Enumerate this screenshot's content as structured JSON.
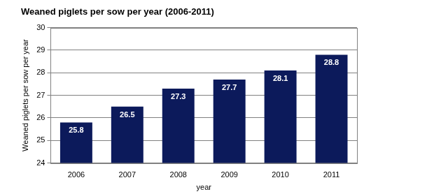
{
  "chart_data": {
    "type": "bar",
    "title": "Weaned piglets per sow per year (2006-2011)",
    "x_label": "year",
    "y_label": "Weaned piglets per sow per year",
    "categories": [
      "2006",
      "2007",
      "2008",
      "2009",
      "2010",
      "2011"
    ],
    "values": [
      25.8,
      26.5,
      27.3,
      27.7,
      28.1,
      28.8
    ],
    "color": "#0c1a5b",
    "ylim": [
      24,
      30
    ],
    "yticks": [
      24,
      25,
      26,
      27,
      28,
      29,
      30
    ],
    "grid": true,
    "data_labels": true
  }
}
